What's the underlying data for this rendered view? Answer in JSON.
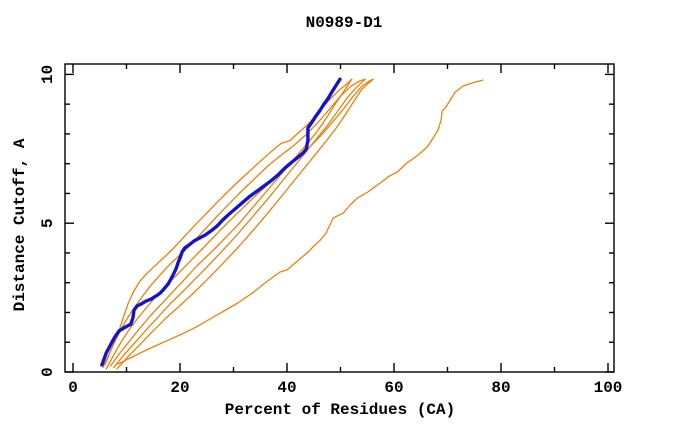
{
  "page": {
    "background": "#ffffff"
  },
  "chart_data": {
    "type": "line",
    "title": "N0989-D1",
    "xlabel": "Percent of Residues (CA)",
    "ylabel": "Distance Cutoff, A",
    "xlim": [
      0,
      100
    ],
    "ylim": [
      0,
      10
    ],
    "x_major_ticks": [
      0,
      20,
      40,
      60,
      80,
      100
    ],
    "x_minor_ticks": [
      10,
      30,
      50,
      70,
      90
    ],
    "y_major_ticks": [
      0,
      5,
      10
    ],
    "y_minor_ticks": [
      1,
      2,
      3,
      4,
      6,
      7,
      8,
      9
    ],
    "grid": false,
    "legend": "none",
    "colors": {
      "highlight": "#1414cc",
      "other": "#ee8109",
      "frame": "#000000"
    },
    "series": [
      {
        "name": "model-1",
        "role": "other",
        "color": "#ee8109",
        "points": [
          [
            6.0,
            0.25
          ],
          [
            7.0,
            0.7
          ],
          [
            8.0,
            1.1
          ],
          [
            8.9,
            1.55
          ],
          [
            9.6,
            1.95
          ],
          [
            10.3,
            2.3
          ],
          [
            11.3,
            2.7
          ],
          [
            12.5,
            3.05
          ],
          [
            14.0,
            3.35
          ],
          [
            15.6,
            3.62
          ],
          [
            17.3,
            3.9
          ],
          [
            19.0,
            4.2
          ],
          [
            20.8,
            4.55
          ],
          [
            22.6,
            4.9
          ],
          [
            24.5,
            5.25
          ],
          [
            26.4,
            5.6
          ],
          [
            28.3,
            5.95
          ],
          [
            30.3,
            6.3
          ],
          [
            32.4,
            6.65
          ],
          [
            34.5,
            7.0
          ],
          [
            36.7,
            7.35
          ],
          [
            38.9,
            7.68
          ],
          [
            40.6,
            7.78
          ],
          [
            42.2,
            8.05
          ],
          [
            43.9,
            8.32
          ],
          [
            45.8,
            8.7
          ],
          [
            47.7,
            9.1
          ],
          [
            49.6,
            9.45
          ],
          [
            51.2,
            9.68
          ],
          [
            52.1,
            9.84
          ]
        ]
      },
      {
        "name": "model-2",
        "role": "other",
        "color": "#ee8109",
        "points": [
          [
            5.6,
            0.15
          ],
          [
            6.5,
            0.5
          ],
          [
            7.5,
            0.9
          ],
          [
            8.6,
            1.3
          ],
          [
            9.8,
            1.7
          ],
          [
            11.2,
            2.1
          ],
          [
            12.8,
            2.5
          ],
          [
            14.5,
            2.9
          ],
          [
            16.2,
            3.25
          ],
          [
            18.0,
            3.6
          ],
          [
            19.8,
            3.9
          ],
          [
            21.6,
            4.2
          ],
          [
            23.4,
            4.55
          ],
          [
            25.2,
            4.9
          ],
          [
            27.0,
            5.25
          ],
          [
            28.9,
            5.6
          ],
          [
            30.8,
            5.95
          ],
          [
            32.8,
            6.3
          ],
          [
            34.8,
            6.65
          ],
          [
            36.9,
            7.0
          ],
          [
            39.0,
            7.3
          ],
          [
            41.2,
            7.6
          ],
          [
            43.4,
            7.95
          ],
          [
            45.6,
            8.35
          ],
          [
            47.8,
            8.8
          ],
          [
            49.9,
            9.25
          ],
          [
            51.9,
            9.6
          ],
          [
            53.6,
            9.78
          ],
          [
            54.6,
            9.84
          ]
        ]
      },
      {
        "name": "model-3",
        "role": "other",
        "color": "#ee8109",
        "points": [
          [
            6.2,
            0.1
          ],
          [
            7.4,
            0.5
          ],
          [
            8.8,
            0.95
          ],
          [
            10.4,
            1.4
          ],
          [
            12.1,
            1.8
          ],
          [
            13.9,
            2.2
          ],
          [
            15.8,
            2.6
          ],
          [
            17.7,
            2.95
          ],
          [
            19.6,
            3.3
          ],
          [
            21.5,
            3.65
          ],
          [
            23.4,
            4.0
          ],
          [
            25.3,
            4.35
          ],
          [
            27.2,
            4.7
          ],
          [
            29.1,
            5.05
          ],
          [
            31.1,
            5.4
          ],
          [
            33.1,
            5.75
          ],
          [
            35.2,
            6.1
          ],
          [
            37.3,
            6.45
          ],
          [
            39.5,
            6.8
          ],
          [
            41.7,
            7.15
          ],
          [
            43.9,
            7.5
          ],
          [
            46.1,
            7.9
          ],
          [
            48.3,
            8.35
          ],
          [
            50.4,
            8.8
          ],
          [
            52.3,
            9.25
          ],
          [
            54.0,
            9.6
          ],
          [
            55.4,
            9.78
          ],
          [
            56.1,
            9.84
          ]
        ]
      },
      {
        "name": "model-4",
        "role": "other",
        "color": "#ee8109",
        "points": [
          [
            7.0,
            0.2
          ],
          [
            8.6,
            0.6
          ],
          [
            10.4,
            1.0
          ],
          [
            12.4,
            1.45
          ],
          [
            14.5,
            1.9
          ],
          [
            16.6,
            2.3
          ],
          [
            18.7,
            2.7
          ],
          [
            20.8,
            3.1
          ],
          [
            22.8,
            3.5
          ],
          [
            24.8,
            3.85
          ],
          [
            26.8,
            4.2
          ],
          [
            28.7,
            4.55
          ],
          [
            30.6,
            4.9
          ],
          [
            32.5,
            5.3
          ],
          [
            34.4,
            5.7
          ],
          [
            36.3,
            6.1
          ],
          [
            38.2,
            6.5
          ],
          [
            40.1,
            6.9
          ],
          [
            42.0,
            7.3
          ],
          [
            43.9,
            7.7
          ],
          [
            45.7,
            8.1
          ],
          [
            47.4,
            8.55
          ],
          [
            49.0,
            9.0
          ],
          [
            50.5,
            9.4
          ],
          [
            51.6,
            9.7
          ],
          [
            52.1,
            9.84
          ]
        ]
      },
      {
        "name": "model-5",
        "role": "other",
        "color": "#ee8109",
        "points": [
          [
            7.6,
            0.15
          ],
          [
            9.4,
            0.55
          ],
          [
            11.4,
            0.95
          ],
          [
            13.6,
            1.4
          ],
          [
            15.9,
            1.85
          ],
          [
            18.2,
            2.3
          ],
          [
            20.5,
            2.7
          ],
          [
            22.7,
            3.1
          ],
          [
            24.9,
            3.5
          ],
          [
            27.0,
            3.9
          ],
          [
            29.1,
            4.3
          ],
          [
            31.1,
            4.7
          ],
          [
            33.0,
            5.1
          ],
          [
            34.9,
            5.5
          ],
          [
            36.8,
            5.9
          ],
          [
            38.6,
            6.3
          ],
          [
            40.4,
            6.7
          ],
          [
            42.2,
            7.1
          ],
          [
            44.0,
            7.5
          ],
          [
            45.8,
            7.9
          ],
          [
            47.6,
            8.3
          ],
          [
            49.4,
            8.75
          ],
          [
            51.2,
            9.2
          ],
          [
            52.9,
            9.55
          ],
          [
            54.1,
            9.75
          ],
          [
            54.6,
            9.84
          ]
        ]
      },
      {
        "name": "model-6",
        "role": "other",
        "color": "#ee8109",
        "points": [
          [
            8.2,
            0.1
          ],
          [
            10.2,
            0.5
          ],
          [
            12.4,
            0.9
          ],
          [
            14.8,
            1.35
          ],
          [
            17.3,
            1.8
          ],
          [
            19.8,
            2.2
          ],
          [
            22.2,
            2.6
          ],
          [
            24.5,
            3.0
          ],
          [
            26.7,
            3.4
          ],
          [
            28.8,
            3.8
          ],
          [
            30.9,
            4.2
          ],
          [
            32.9,
            4.6
          ],
          [
            34.8,
            5.0
          ],
          [
            36.7,
            5.4
          ],
          [
            38.5,
            5.8
          ],
          [
            40.3,
            6.2
          ],
          [
            42.1,
            6.6
          ],
          [
            43.9,
            7.0
          ],
          [
            45.7,
            7.4
          ],
          [
            47.5,
            7.8
          ],
          [
            49.2,
            8.2
          ],
          [
            50.9,
            8.65
          ],
          [
            52.5,
            9.1
          ],
          [
            54.0,
            9.5
          ],
          [
            55.3,
            9.72
          ],
          [
            56.1,
            9.84
          ]
        ]
      },
      {
        "name": "model-7",
        "role": "other",
        "color": "#ee8109",
        "points": [
          [
            8.4,
            0.27
          ],
          [
            10.7,
            0.47
          ],
          [
            12.9,
            0.67
          ],
          [
            15.3,
            0.87
          ],
          [
            17.8,
            1.07
          ],
          [
            20.4,
            1.28
          ],
          [
            23.0,
            1.51
          ],
          [
            25.6,
            1.78
          ],
          [
            28.2,
            2.05
          ],
          [
            30.8,
            2.32
          ],
          [
            33.5,
            2.65
          ],
          [
            36.1,
            3.02
          ],
          [
            38.7,
            3.36
          ],
          [
            40.0,
            3.43
          ],
          [
            41.3,
            3.63
          ],
          [
            42.6,
            3.83
          ],
          [
            43.9,
            4.03
          ],
          [
            45.0,
            4.23
          ],
          [
            46.2,
            4.43
          ],
          [
            47.3,
            4.67
          ],
          [
            48.0,
            4.94
          ],
          [
            48.6,
            5.17
          ],
          [
            50.5,
            5.34
          ],
          [
            51.8,
            5.61
          ],
          [
            53.1,
            5.84
          ],
          [
            55.1,
            6.05
          ],
          [
            57.4,
            6.35
          ],
          [
            59.1,
            6.58
          ],
          [
            60.6,
            6.72
          ],
          [
            62.4,
            7.02
          ],
          [
            64.5,
            7.29
          ],
          [
            66.2,
            7.56
          ],
          [
            67.3,
            7.86
          ],
          [
            68.2,
            8.13
          ],
          [
            68.8,
            8.46
          ],
          [
            69.0,
            8.77
          ],
          [
            69.7,
            8.9
          ],
          [
            70.5,
            9.14
          ],
          [
            71.4,
            9.4
          ],
          [
            72.9,
            9.61
          ],
          [
            74.6,
            9.71
          ],
          [
            76.6,
            9.81
          ]
        ]
      },
      {
        "name": "model-highlighted",
        "role": "highlight",
        "color": "#1414cc",
        "points": [
          [
            5.4,
            0.24
          ],
          [
            6.2,
            0.64
          ],
          [
            6.9,
            0.87
          ],
          [
            7.7,
            1.14
          ],
          [
            8.6,
            1.38
          ],
          [
            9.5,
            1.48
          ],
          [
            10.8,
            1.61
          ],
          [
            11.2,
            1.81
          ],
          [
            11.4,
            2.08
          ],
          [
            12.0,
            2.22
          ],
          [
            12.7,
            2.28
          ],
          [
            13.6,
            2.38
          ],
          [
            14.6,
            2.45
          ],
          [
            15.5,
            2.55
          ],
          [
            16.3,
            2.65
          ],
          [
            17.0,
            2.79
          ],
          [
            17.8,
            2.96
          ],
          [
            18.3,
            3.12
          ],
          [
            18.9,
            3.33
          ],
          [
            19.3,
            3.49
          ],
          [
            19.6,
            3.66
          ],
          [
            20.0,
            3.83
          ],
          [
            20.4,
            4.03
          ],
          [
            20.9,
            4.17
          ],
          [
            21.7,
            4.27
          ],
          [
            22.6,
            4.4
          ],
          [
            23.6,
            4.5
          ],
          [
            24.7,
            4.6
          ],
          [
            25.8,
            4.74
          ],
          [
            26.9,
            4.9
          ],
          [
            28.0,
            5.11
          ],
          [
            29.2,
            5.31
          ],
          [
            30.5,
            5.51
          ],
          [
            31.8,
            5.71
          ],
          [
            33.1,
            5.91
          ],
          [
            34.4,
            6.08
          ],
          [
            35.7,
            6.25
          ],
          [
            37.0,
            6.42
          ],
          [
            38.3,
            6.62
          ],
          [
            39.6,
            6.85
          ],
          [
            40.9,
            7.05
          ],
          [
            42.1,
            7.22
          ],
          [
            43.0,
            7.36
          ],
          [
            43.6,
            7.49
          ],
          [
            43.9,
            7.79
          ],
          [
            43.9,
            8.2
          ],
          [
            44.7,
            8.4
          ],
          [
            45.4,
            8.6
          ],
          [
            46.2,
            8.8
          ],
          [
            46.9,
            9.0
          ],
          [
            47.7,
            9.2
          ],
          [
            48.4,
            9.41
          ],
          [
            49.2,
            9.64
          ],
          [
            49.9,
            9.84
          ]
        ]
      }
    ]
  }
}
